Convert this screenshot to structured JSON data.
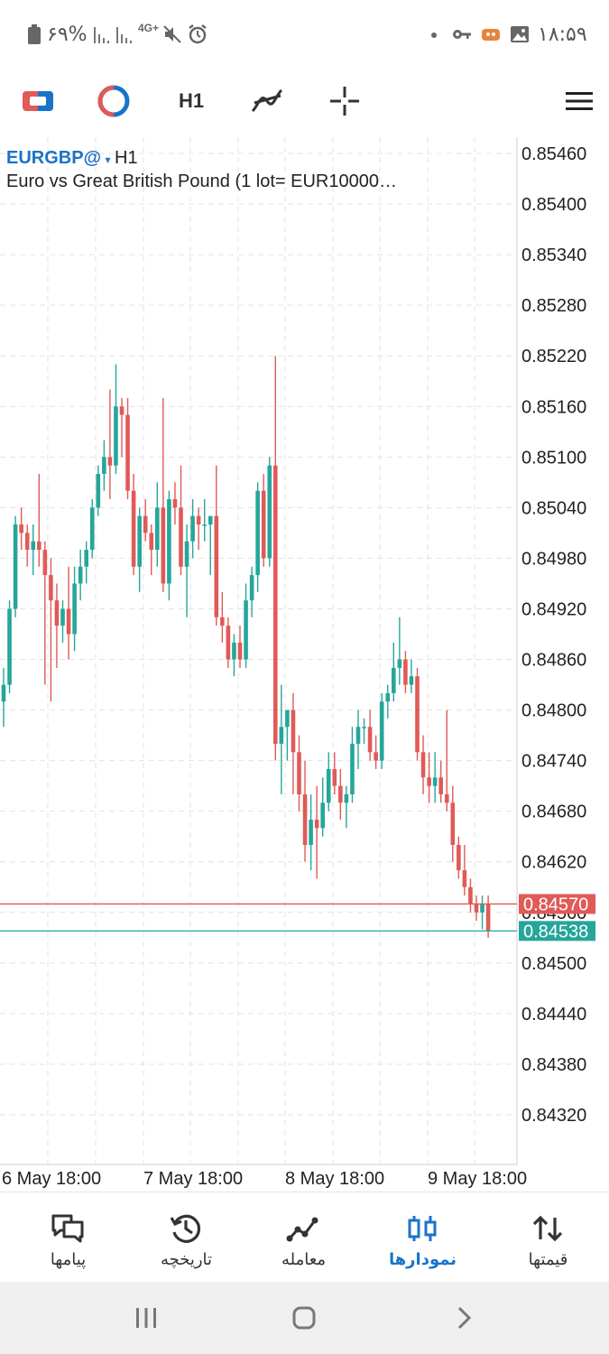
{
  "status_bar": {
    "battery_text": "۶۹%",
    "network_text": "4G+",
    "time": "۱۸:۵۹"
  },
  "toolbar": {
    "timeframe": "H1",
    "icons": [
      "trade-icon",
      "indicators-icon",
      "timeframe",
      "objects-icon",
      "crosshair-icon",
      "menu-icon"
    ]
  },
  "chart": {
    "symbol": "EURGBP@",
    "dropdown": "▾",
    "timeframe": "H1",
    "description": "Euro vs Great British Pound (1 lot= EUR10000…",
    "bid_color": "#26a69a",
    "ask_color": "#e05a57",
    "bid_price": "0.84538",
    "ask_price": "0.84570",
    "hidden_price_label": "0.84560",
    "y_axis": [
      "0.85460",
      "0.85400",
      "0.85340",
      "0.85280",
      "0.85220",
      "0.85160",
      "0.85100",
      "0.85040",
      "0.84980",
      "0.84920",
      "0.84860",
      "0.84800",
      "0.84740",
      "0.84680",
      "0.84620",
      "0.84560",
      "0.84500",
      "0.84440",
      "0.84380",
      "0.84320"
    ],
    "x_axis": [
      "6 May 18:00",
      "7 May 18:00",
      "8 May 18:00",
      "9 May 18:00"
    ]
  },
  "chart_data": {
    "type": "candlestick",
    "ylim": [
      0.84275,
      0.8549
    ],
    "candles": [
      [
        0.8481,
        0.8485,
        0.8478,
        0.8483
      ],
      [
        0.8483,
        0.8493,
        0.8482,
        0.8492
      ],
      [
        0.8492,
        0.8503,
        0.8491,
        0.8502
      ],
      [
        0.8502,
        0.8504,
        0.8499,
        0.8501
      ],
      [
        0.8501,
        0.8502,
        0.8497,
        0.8499
      ],
      [
        0.8499,
        0.8502,
        0.8496,
        0.85
      ],
      [
        0.85,
        0.8508,
        0.8497,
        0.8499
      ],
      [
        0.8499,
        0.85,
        0.8483,
        0.8496
      ],
      [
        0.8496,
        0.8498,
        0.8481,
        0.8493
      ],
      [
        0.8493,
        0.8495,
        0.8485,
        0.849
      ],
      [
        0.849,
        0.8493,
        0.8488,
        0.8492
      ],
      [
        0.8492,
        0.8497,
        0.8486,
        0.8489
      ],
      [
        0.8489,
        0.8497,
        0.8487,
        0.8495
      ],
      [
        0.8495,
        0.8499,
        0.8493,
        0.8497
      ],
      [
        0.8497,
        0.85,
        0.8495,
        0.8499
      ],
      [
        0.8499,
        0.8505,
        0.8498,
        0.8504
      ],
      [
        0.8504,
        0.8509,
        0.8503,
        0.8508
      ],
      [
        0.8508,
        0.8512,
        0.8506,
        0.851
      ],
      [
        0.851,
        0.8518,
        0.8505,
        0.8509
      ],
      [
        0.8509,
        0.8521,
        0.8508,
        0.8516
      ],
      [
        0.8516,
        0.8517,
        0.851,
        0.8515
      ],
      [
        0.8515,
        0.8517,
        0.8505,
        0.8506
      ],
      [
        0.8506,
        0.8508,
        0.8496,
        0.8497
      ],
      [
        0.8497,
        0.8504,
        0.8494,
        0.8503
      ],
      [
        0.8503,
        0.8505,
        0.85,
        0.8501
      ],
      [
        0.8501,
        0.8502,
        0.8496,
        0.8499
      ],
      [
        0.8499,
        0.8507,
        0.8497,
        0.8504
      ],
      [
        0.8504,
        0.8517,
        0.8494,
        0.8495
      ],
      [
        0.8495,
        0.8506,
        0.8493,
        0.8505
      ],
      [
        0.8505,
        0.8507,
        0.8502,
        0.8504
      ],
      [
        0.8504,
        0.8509,
        0.8496,
        0.8497
      ],
      [
        0.8497,
        0.8502,
        0.8491,
        0.85
      ],
      [
        0.85,
        0.8505,
        0.8498,
        0.8503
      ],
      [
        0.8503,
        0.8504,
        0.8499,
        0.8502
      ],
      [
        0.8502,
        0.8505,
        0.85,
        0.8502
      ],
      [
        0.8502,
        0.8503,
        0.8496,
        0.8503
      ],
      [
        0.8503,
        0.8509,
        0.849,
        0.8491
      ],
      [
        0.8491,
        0.8494,
        0.8488,
        0.849
      ],
      [
        0.849,
        0.8491,
        0.8485,
        0.8486
      ],
      [
        0.8486,
        0.8489,
        0.8484,
        0.8488
      ],
      [
        0.8488,
        0.849,
        0.8485,
        0.8486
      ],
      [
        0.8486,
        0.8495,
        0.8485,
        0.8493
      ],
      [
        0.8493,
        0.8497,
        0.8491,
        0.8496
      ],
      [
        0.8496,
        0.8507,
        0.8494,
        0.8506
      ],
      [
        0.8506,
        0.8508,
        0.8497,
        0.8498
      ],
      [
        0.8498,
        0.851,
        0.8497,
        0.8509
      ],
      [
        0.8509,
        0.8522,
        0.8474,
        0.8476
      ],
      [
        0.8476,
        0.8483,
        0.847,
        0.8478
      ],
      [
        0.8478,
        0.848,
        0.8474,
        0.848
      ],
      [
        0.848,
        0.8482,
        0.847,
        0.8475
      ],
      [
        0.8475,
        0.8477,
        0.8468,
        0.847
      ],
      [
        0.847,
        0.8474,
        0.8462,
        0.8464
      ],
      [
        0.8464,
        0.847,
        0.8461,
        0.8467
      ],
      [
        0.8467,
        0.8471,
        0.846,
        0.8466
      ],
      [
        0.8466,
        0.8472,
        0.8465,
        0.8469
      ],
      [
        0.8469,
        0.8475,
        0.8468,
        0.8473
      ],
      [
        0.8473,
        0.8475,
        0.847,
        0.8471
      ],
      [
        0.8471,
        0.8473,
        0.8467,
        0.8469
      ],
      [
        0.8469,
        0.8471,
        0.8466,
        0.847
      ],
      [
        0.847,
        0.8478,
        0.8469,
        0.8476
      ],
      [
        0.8476,
        0.848,
        0.8473,
        0.8478
      ],
      [
        0.8478,
        0.8479,
        0.8476,
        0.8478
      ],
      [
        0.8478,
        0.848,
        0.8474,
        0.8475
      ],
      [
        0.8475,
        0.8477,
        0.8473,
        0.8474
      ],
      [
        0.8474,
        0.8482,
        0.8473,
        0.8481
      ],
      [
        0.8481,
        0.8483,
        0.8479,
        0.8482
      ],
      [
        0.8482,
        0.8488,
        0.8481,
        0.8485
      ],
      [
        0.8485,
        0.8491,
        0.8483,
        0.8486
      ],
      [
        0.8486,
        0.8487,
        0.8482,
        0.8483
      ],
      [
        0.8483,
        0.8486,
        0.8482,
        0.8484
      ],
      [
        0.8484,
        0.8485,
        0.8474,
        0.8475
      ],
      [
        0.8475,
        0.8477,
        0.847,
        0.8472
      ],
      [
        0.8472,
        0.8475,
        0.8469,
        0.8471
      ],
      [
        0.8471,
        0.8475,
        0.8469,
        0.8472
      ],
      [
        0.8472,
        0.8474,
        0.8469,
        0.847
      ],
      [
        0.847,
        0.848,
        0.8468,
        0.8469
      ],
      [
        0.8469,
        0.8471,
        0.8462,
        0.8464
      ],
      [
        0.8464,
        0.8465,
        0.846,
        0.8461
      ],
      [
        0.8461,
        0.8464,
        0.8458,
        0.8459
      ],
      [
        0.8459,
        0.846,
        0.8456,
        0.8457
      ],
      [
        0.8457,
        0.8458,
        0.8455,
        0.8456
      ],
      [
        0.8456,
        0.8458,
        0.8454,
        0.8457
      ],
      [
        0.8457,
        0.8458,
        0.8453,
        0.84538
      ]
    ]
  },
  "bottom_nav": [
    {
      "name": "nav-quotes",
      "icon": "arrows-updown-icon",
      "label": "قیمتها",
      "active": false
    },
    {
      "name": "nav-charts",
      "icon": "candles-icon",
      "label": "نمودارها",
      "active": true
    },
    {
      "name": "nav-trade",
      "icon": "trade-line-icon",
      "label": "معامله",
      "active": false
    },
    {
      "name": "nav-history",
      "icon": "history-icon",
      "label": "تاریخچه",
      "active": false
    },
    {
      "name": "nav-messages",
      "icon": "messages-icon",
      "label": "پیامها",
      "active": false
    }
  ]
}
